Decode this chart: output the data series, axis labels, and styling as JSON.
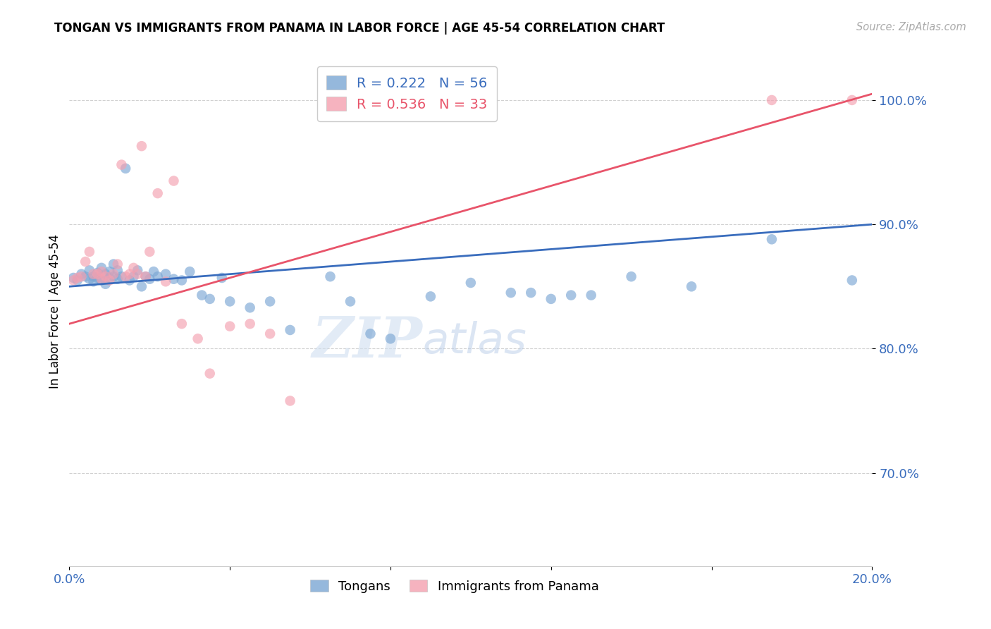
{
  "title": "TONGAN VS IMMIGRANTS FROM PANAMA IN LABOR FORCE | AGE 45-54 CORRELATION CHART",
  "source": "Source: ZipAtlas.com",
  "ylabel": "In Labor Force | Age 45-54",
  "r_tongan": 0.222,
  "n_tongan": 56,
  "r_panama": 0.536,
  "n_panama": 33,
  "xmin": 0.0,
  "xmax": 0.2,
  "ymin": 0.625,
  "ymax": 1.035,
  "yticks": [
    0.7,
    0.8,
    0.9,
    1.0
  ],
  "ytick_labels": [
    "70.0%",
    "80.0%",
    "90.0%",
    "100.0%"
  ],
  "xticks": [
    0.0,
    0.04,
    0.08,
    0.12,
    0.16,
    0.2
  ],
  "xtick_labels": [
    "0.0%",
    "",
    "",
    "",
    "",
    "20.0%"
  ],
  "color_tongan": "#7ba7d4",
  "color_panama": "#f4a0b0",
  "line_color_tongan": "#3a6dbd",
  "line_color_panama": "#e8546a",
  "watermark_zip": "ZIP",
  "watermark_atlas": "atlas",
  "legend_color": "#3a6dbd",
  "tongan_x": [
    0.001,
    0.002,
    0.003,
    0.004,
    0.005,
    0.005,
    0.006,
    0.006,
    0.007,
    0.007,
    0.008,
    0.008,
    0.009,
    0.009,
    0.01,
    0.01,
    0.011,
    0.011,
    0.012,
    0.012,
    0.013,
    0.014,
    0.015,
    0.016,
    0.017,
    0.018,
    0.019,
    0.02,
    0.021,
    0.022,
    0.024,
    0.026,
    0.028,
    0.03,
    0.033,
    0.035,
    0.038,
    0.04,
    0.045,
    0.05,
    0.055,
    0.065,
    0.07,
    0.075,
    0.08,
    0.09,
    0.1,
    0.11,
    0.115,
    0.12,
    0.125,
    0.13,
    0.14,
    0.155,
    0.175,
    0.195
  ],
  "tongan_y": [
    0.857,
    0.855,
    0.86,
    0.858,
    0.856,
    0.863,
    0.858,
    0.854,
    0.861,
    0.857,
    0.865,
    0.855,
    0.86,
    0.852,
    0.857,
    0.862,
    0.868,
    0.858,
    0.863,
    0.856,
    0.858,
    0.945,
    0.855,
    0.858,
    0.863,
    0.85,
    0.858,
    0.856,
    0.862,
    0.858,
    0.86,
    0.856,
    0.855,
    0.862,
    0.843,
    0.84,
    0.857,
    0.838,
    0.833,
    0.838,
    0.815,
    0.858,
    0.838,
    0.812,
    0.808,
    0.842,
    0.853,
    0.845,
    0.845,
    0.84,
    0.843,
    0.843,
    0.858,
    0.85,
    0.888,
    0.855
  ],
  "panama_x": [
    0.001,
    0.002,
    0.003,
    0.004,
    0.005,
    0.006,
    0.007,
    0.008,
    0.008,
    0.009,
    0.01,
    0.011,
    0.012,
    0.013,
    0.014,
    0.015,
    0.016,
    0.017,
    0.018,
    0.019,
    0.02,
    0.022,
    0.024,
    0.026,
    0.028,
    0.032,
    0.035,
    0.04,
    0.045,
    0.05,
    0.055,
    0.175,
    0.195
  ],
  "panama_y": [
    0.855,
    0.857,
    0.858,
    0.87,
    0.878,
    0.86,
    0.86,
    0.856,
    0.862,
    0.858,
    0.855,
    0.86,
    0.868,
    0.948,
    0.858,
    0.86,
    0.865,
    0.86,
    0.963,
    0.858,
    0.878,
    0.925,
    0.854,
    0.935,
    0.82,
    0.808,
    0.78,
    0.818,
    0.82,
    0.812,
    0.758,
    1.0,
    1.0
  ],
  "line_tongan_x0": 0.0,
  "line_tongan_y0": 0.85,
  "line_tongan_x1": 0.2,
  "line_tongan_y1": 0.9,
  "line_panama_x0": 0.0,
  "line_panama_y0": 0.82,
  "line_panama_x1": 0.2,
  "line_panama_y1": 1.005
}
